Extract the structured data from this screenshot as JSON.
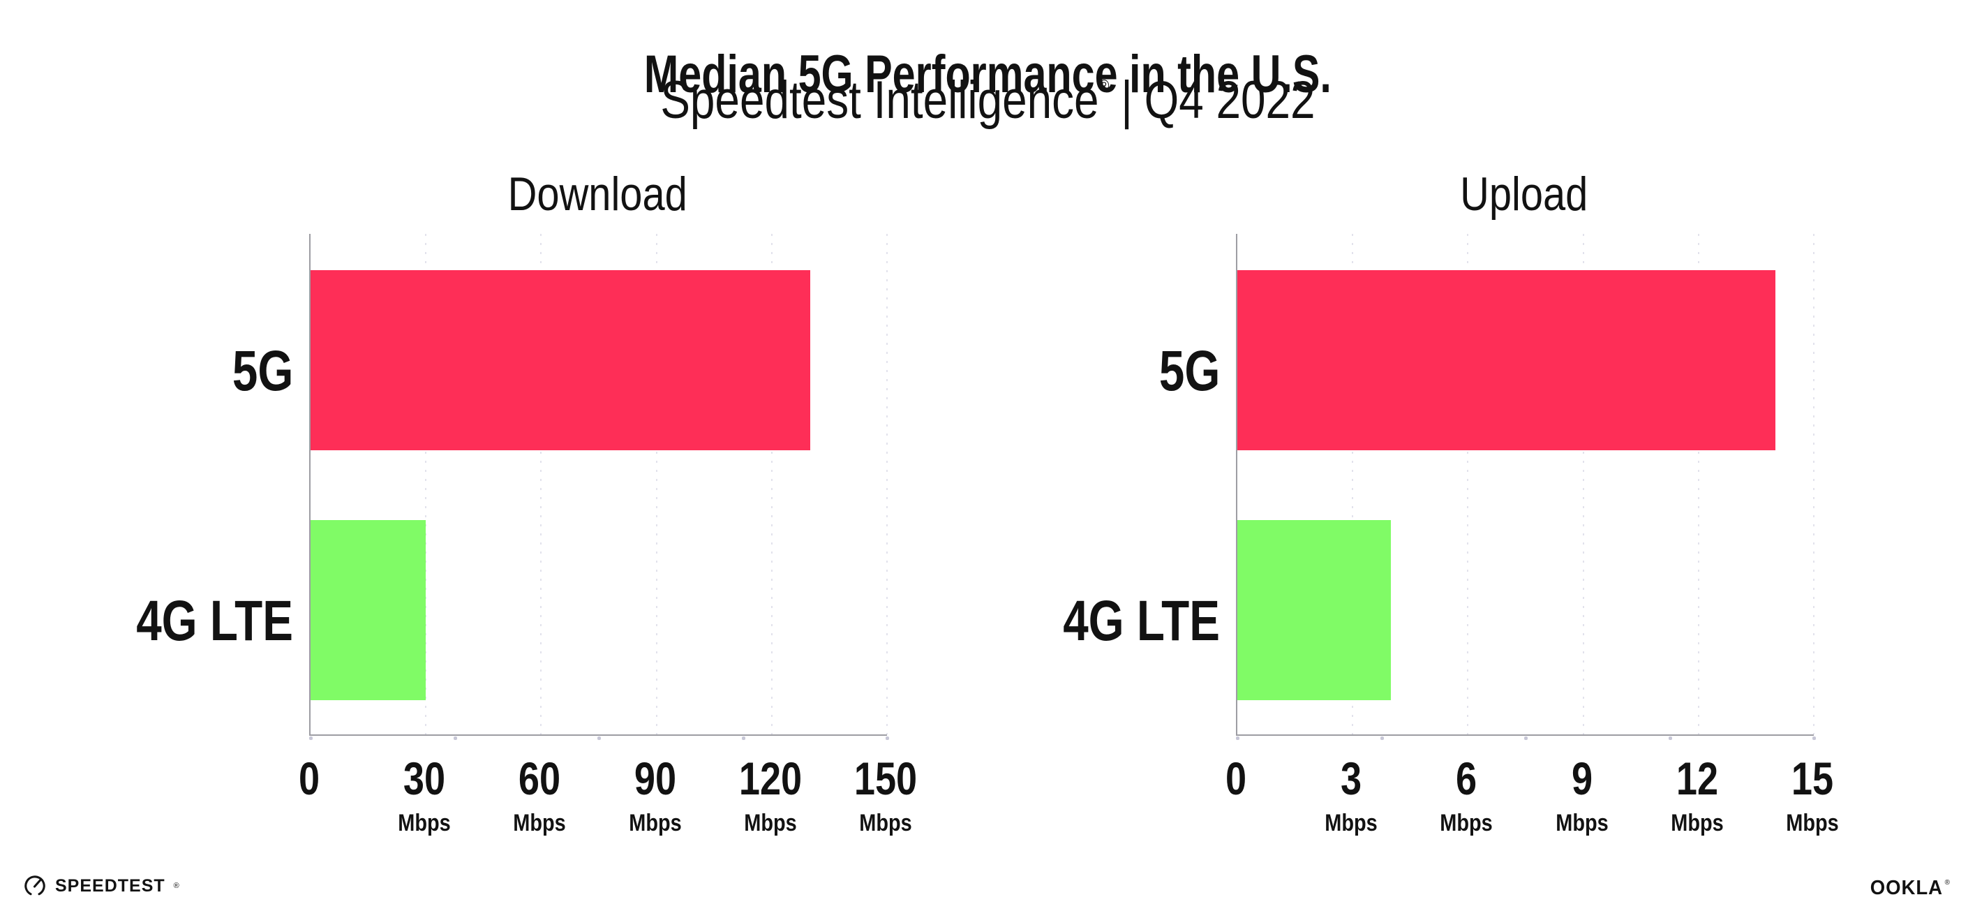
{
  "header": {
    "title": "Median 5G Performance in the U.S.",
    "subtitle": {
      "brand": "Speedtest Intelligence",
      "registered_mark": "®",
      "separator": "|",
      "period": "Q4 2022"
    }
  },
  "colors": {
    "bar_5g": "#fe2e57",
    "bar_4g_lte": "#80fb66",
    "axis_line": "#9d9da3",
    "gridline": "#e2e2ec",
    "tick_dot": "#c7c7d6",
    "text": "#121212"
  },
  "chart_data": [
    {
      "type": "bar",
      "orientation": "horizontal",
      "title": "Download",
      "categories": [
        "5G",
        "4G LTE"
      ],
      "values": [
        130,
        30
      ],
      "unit": "Mbps",
      "xlim": [
        0,
        150
      ],
      "ticks": [
        0,
        30,
        60,
        90,
        120,
        150
      ],
      "grid": "dotted-vertical",
      "legend": "none"
    },
    {
      "type": "bar",
      "orientation": "horizontal",
      "title": "Upload",
      "categories": [
        "5G",
        "4G LTE"
      ],
      "values": [
        14,
        4
      ],
      "unit": "Mbps",
      "xlim": [
        0,
        15
      ],
      "ticks": [
        0,
        3,
        6,
        9,
        12,
        15
      ],
      "grid": "dotted-vertical",
      "legend": "none"
    }
  ],
  "footer": {
    "speedtest_wordmark": "SPEEDTEST",
    "speedtest_registered": "®",
    "ookla_wordmark": "OOKLA",
    "ookla_registered": "®"
  }
}
